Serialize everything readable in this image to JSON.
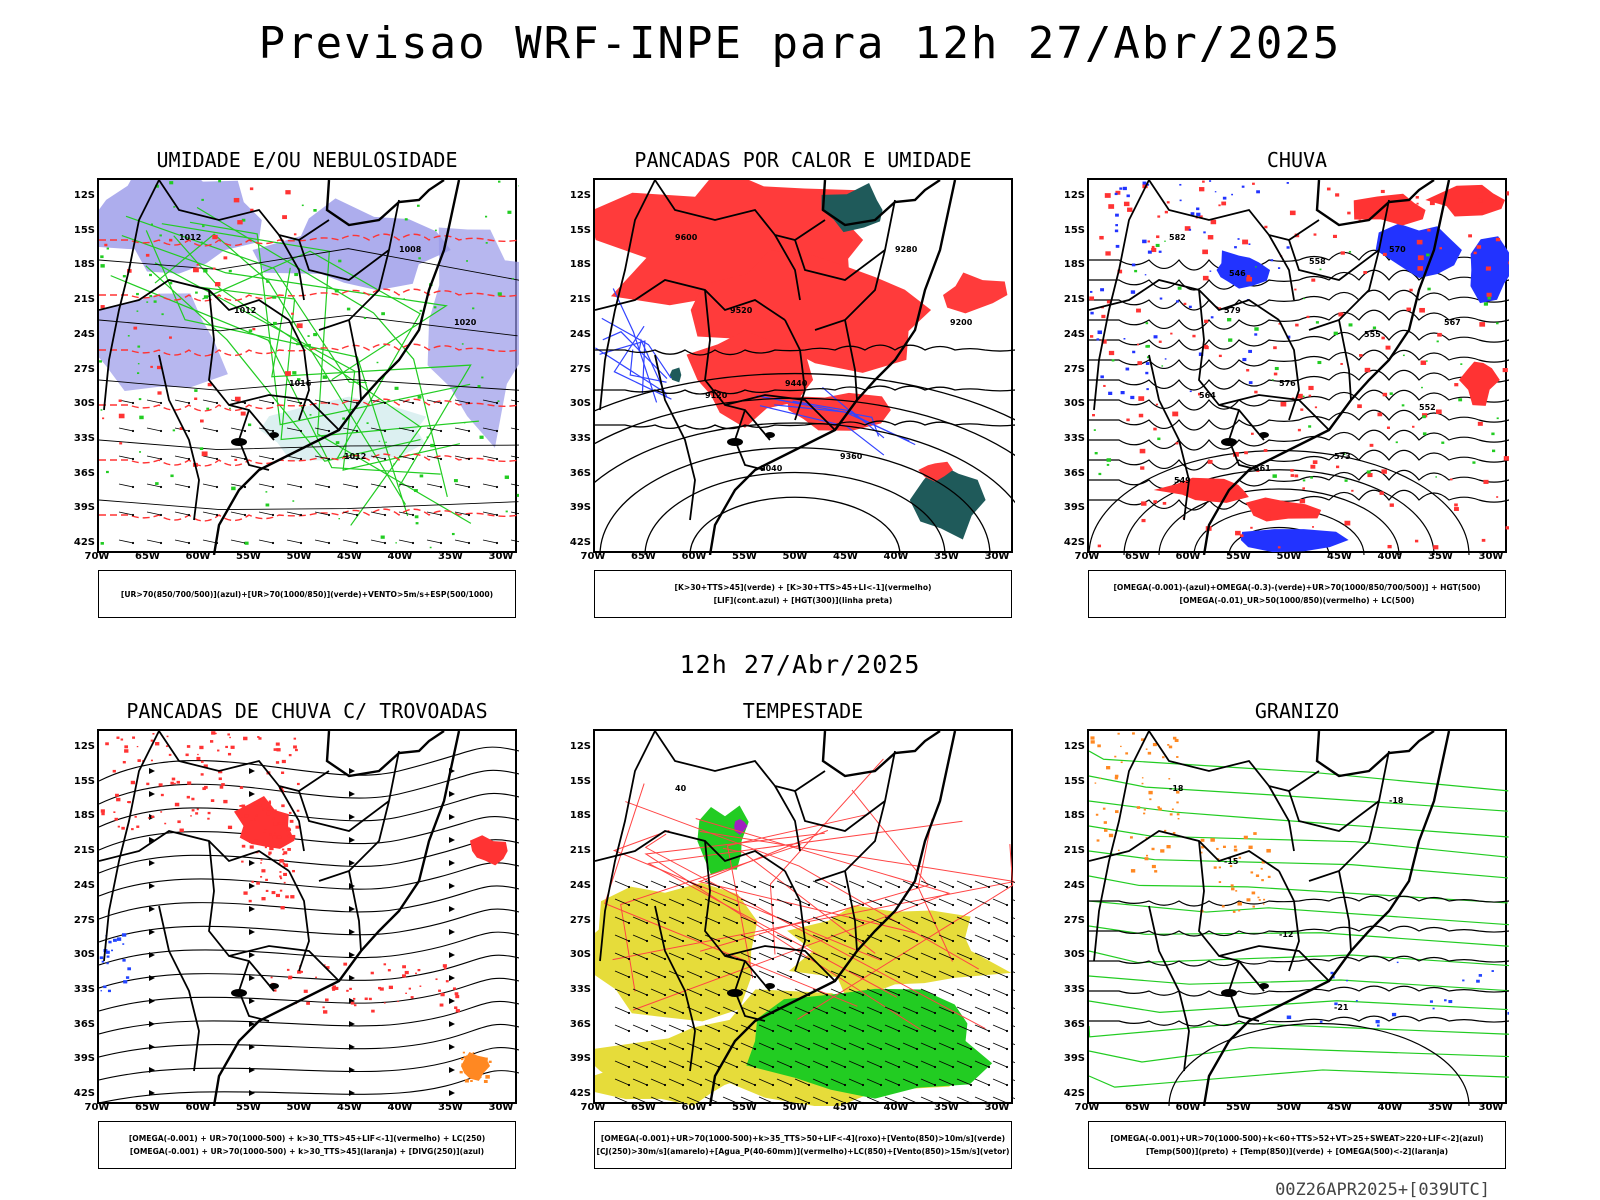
{
  "header": {
    "title": "Previsao WRF-INPE  para 12h 27/Abr/2025",
    "subtitle": "12h 27/Abr/2025"
  },
  "footer": {
    "text": "00Z26APR2025+[039UTC]"
  },
  "axes": {
    "lat_labels": [
      "12S",
      "15S",
      "18S",
      "21S",
      "24S",
      "27S",
      "30S",
      "33S",
      "36S",
      "39S",
      "42S"
    ],
    "lon_labels": [
      "70W",
      "65W",
      "60W",
      "55W",
      "50W",
      "45W",
      "40W",
      "35W",
      "30W"
    ]
  },
  "panels": [
    {
      "id": "umidade",
      "title": "UMIDADE E/OU NEBULOSIDADE",
      "legend": [
        "[UR>70(850/700/500)](azul)+[UR>70(1000/850)](verde)+VENTO>5m/s+ESP(500/1000)"
      ],
      "colors": [
        "#9898e8",
        "#22cc22",
        "#ff3333"
      ],
      "contour_labels": [
        "1012",
        "1012",
        "1016",
        "1012",
        "1008",
        "1020"
      ]
    },
    {
      "id": "pancadas-calor",
      "title": "PANCADAS POR CALOR E UMIDADE",
      "legend": [
        "[K>30+TTS>45](verde) + [K>30+TTS>45+LI<-1](vermelho)",
        "[LIF](cont.azul) + [HGT(300)](linha preta)"
      ],
      "colors": [
        "#ff3b3b",
        "#1f5a5a",
        "#3344ff"
      ],
      "contour_labels": [
        "9600",
        "9520",
        "9440",
        "9360",
        "9280",
        "9200",
        "9120",
        "9040"
      ]
    },
    {
      "id": "chuva",
      "title": "CHUVA",
      "legend": [
        "[OMEGA(-0.001)-(azul)+OMEGA(-0.3)-(verde)+UR>70(1000/850/700/500)] + HGT(500)",
        "[OMEGA(-0.01)_UR>50(1000/850)(vermelho) + LC(500)"
      ],
      "colors": [
        "#ff3333",
        "#2233ff",
        "#22cc22"
      ],
      "contour_labels": [
        "582",
        "579",
        "576",
        "573",
        "570",
        "567",
        "564",
        "561",
        "558",
        "555",
        "552",
        "549",
        "546"
      ]
    },
    {
      "id": "trovoadas",
      "title": "PANCADAS DE CHUVA C/ TROVOADAS",
      "legend": [
        "[OMEGA(-0.001) + UR>70(1000-500) + k>30_TTS>45+LIF<-1](vermelho) + LC(250)",
        "[OMEGA(-0.001) + UR>70(1000-500) + k>30_TTS>45](laranja) + [DIVG(250)](azul)"
      ],
      "colors": [
        "#ff3333",
        "#ff8822",
        "#2244ff"
      ],
      "contour_labels": []
    },
    {
      "id": "tempestade",
      "title": "TEMPESTADE",
      "legend": [
        "[OMEGA(-0.001)+UR>70(1000-500)+k>35_TTS>50+LIF<-4](roxo)+[Vento(850)>10m/s](verde)",
        "[CJ(250)>30m/s](amarelo)+[Agua_P(40-60mm)](vermelho)+LC(850)+[Vento(850)>15m/s](vetor)"
      ],
      "colors": [
        "#e6dc3a",
        "#22cc22",
        "#ff4444"
      ],
      "contour_labels": [
        "40"
      ]
    },
    {
      "id": "granizo",
      "title": "GRANIZO",
      "legend": [
        "[OMEGA(-0.001)+UR>70(1000-500)+k<60+TTS>52+VT>25+SWEAT>220+LIF<-2](azul)",
        "[Temp(500)](preto) + [Temp(850)](verde) + [OMEGA(500)<-2](laranja)"
      ],
      "colors": [
        "#22cc22",
        "#ff8822",
        "#2244ff"
      ],
      "contour_labels": [
        "-18",
        "-15",
        "-12",
        "-21",
        "-18"
      ]
    }
  ]
}
